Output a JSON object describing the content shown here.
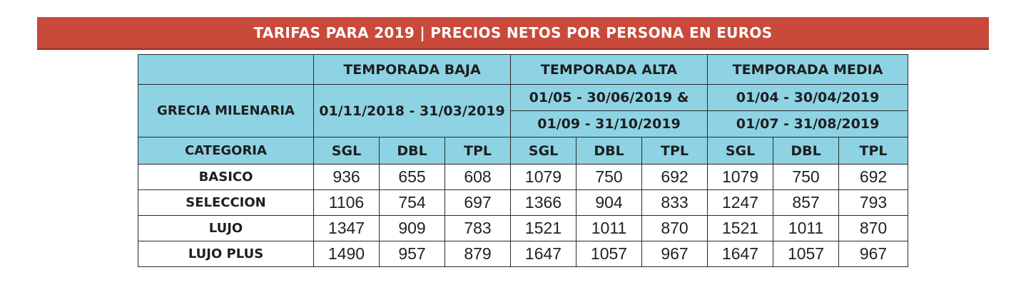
{
  "banner": {
    "title": "TARIFAS PARA 2019 | PRECIOS NETOS POR PERSONA EN EUROS"
  },
  "table": {
    "product": "GRECIA MILENARIA",
    "category_label": "CATEGORIA",
    "seasons": [
      {
        "name": "TEMPORADA BAJA",
        "dates": [
          "01/11/2018 - 31/03/2019"
        ]
      },
      {
        "name": "TEMPORADA ALTA",
        "dates": [
          "01/05 - 30/06/2019 &",
          "01/09 - 31/10/2019"
        ]
      },
      {
        "name": "TEMPORADA MEDIA",
        "dates": [
          "01/04 - 30/04/2019",
          "01/07 - 31/08/2019"
        ]
      }
    ],
    "room_types": [
      "SGL",
      "DBL",
      "TPL"
    ],
    "rows": [
      {
        "category": "BASICO",
        "values": [
          "936",
          "655",
          "608",
          "1079",
          "750",
          "692",
          "1079",
          "750",
          "692"
        ]
      },
      {
        "category": "SELECCION",
        "values": [
          "1106",
          "754",
          "697",
          "1366",
          "904",
          "833",
          "1247",
          "857",
          "793"
        ]
      },
      {
        "category": "LUJO",
        "values": [
          "1347",
          "909",
          "783",
          "1521",
          "1011",
          "870",
          "1521",
          "1011",
          "870"
        ]
      },
      {
        "category": "LUJO PLUS",
        "values": [
          "1490",
          "957",
          "879",
          "1647",
          "1057",
          "967",
          "1647",
          "1057",
          "967"
        ]
      }
    ]
  },
  "colors": {
    "banner": "#c9493a",
    "header_fill": "#8ed3e4"
  }
}
